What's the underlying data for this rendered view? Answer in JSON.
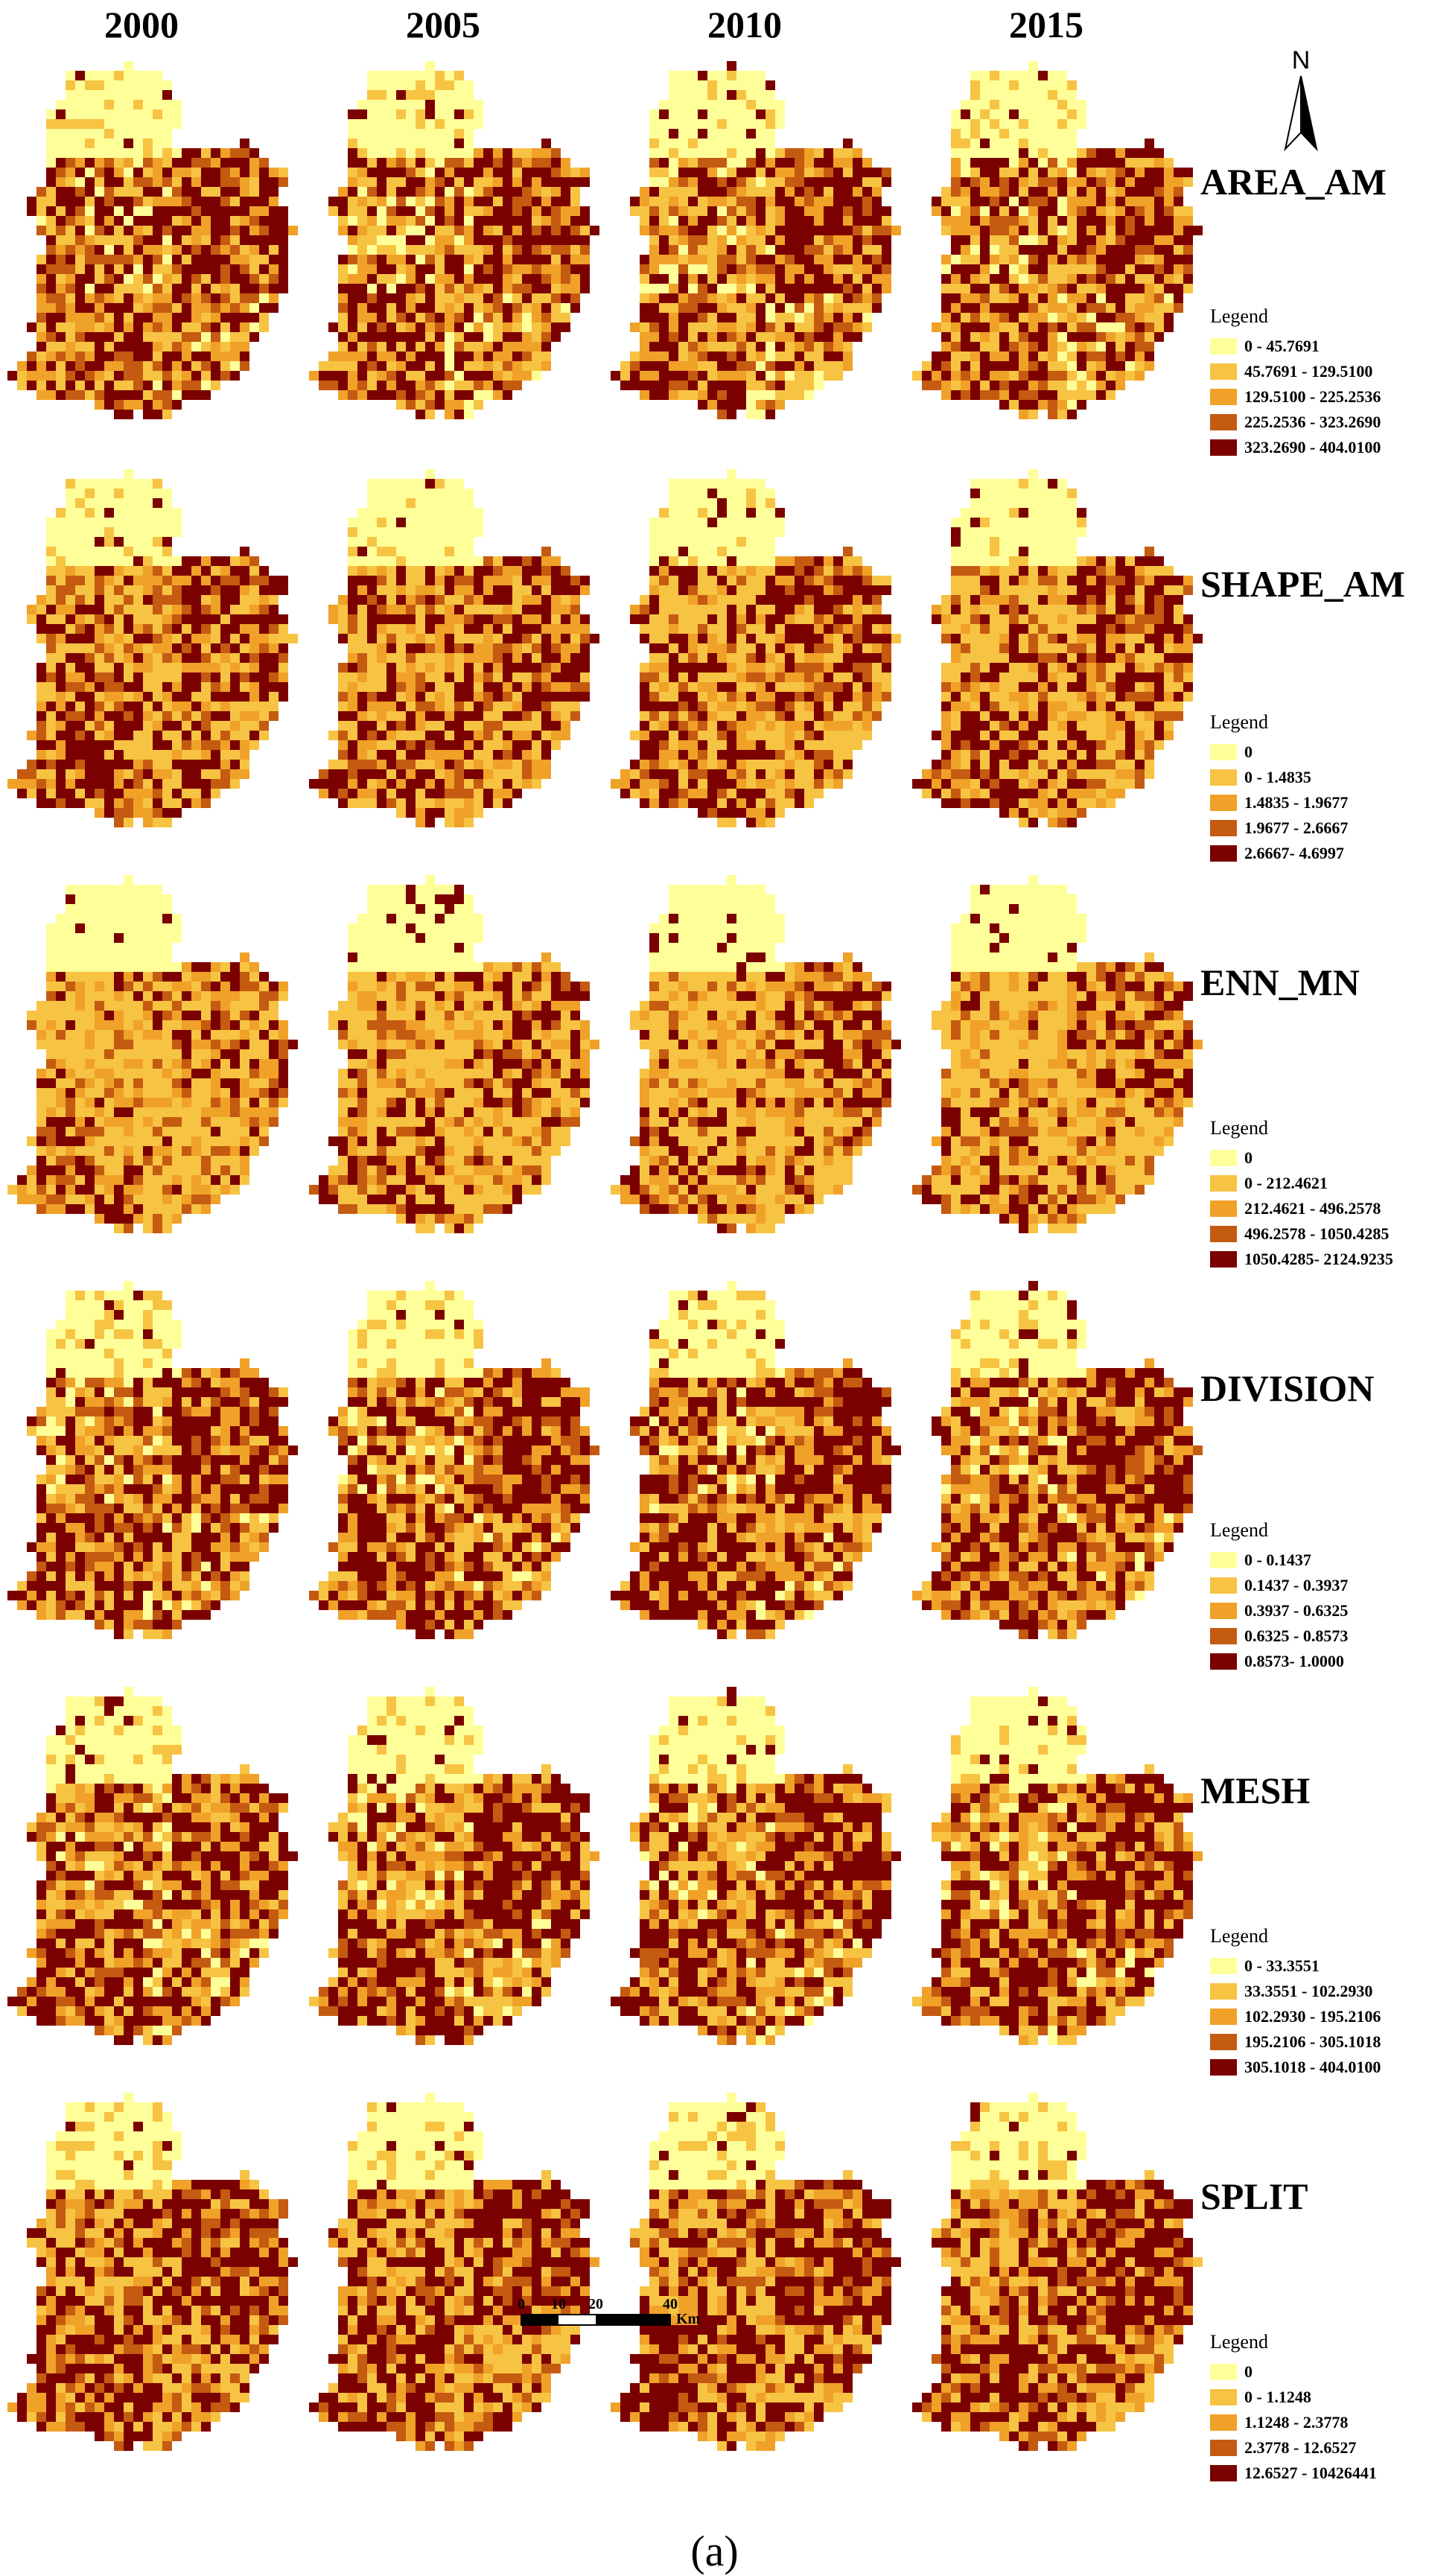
{
  "years": [
    "2000",
    "2005",
    "2010",
    "2015"
  ],
  "colors": {
    "c0": "#ffff99",
    "c1": "#f7c342",
    "c2": "#f0a128",
    "c3": "#c55a11",
    "c4": "#7b0000"
  },
  "north": {
    "label": "N",
    "icon": "north-arrow-icon"
  },
  "rows": [
    {
      "metric": "AREA_AM",
      "legend_title": "Legend",
      "legend": [
        {
          "label": "0 - 45.7691",
          "color": "#ffff99"
        },
        {
          "label": "45.7691 - 129.5100",
          "color": "#f7c342"
        },
        {
          "label": "129.5100 - 225.2536",
          "color": "#f0a128"
        },
        {
          "label": "225.2536 - 323.2690",
          "color": "#c55a11"
        },
        {
          "label": "323.2690 - 404.0100",
          "color": "#7b0000"
        }
      ]
    },
    {
      "metric": "SHAPE_AM",
      "legend_title": "Legend",
      "legend": [
        {
          "label": "0",
          "color": "#ffff99"
        },
        {
          "label": "0 - 1.4835",
          "color": "#f7c342"
        },
        {
          "label": "1.4835 - 1.9677",
          "color": "#f0a128"
        },
        {
          "label": "1.9677 - 2.6667",
          "color": "#c55a11"
        },
        {
          "label": "2.6667- 4.6997",
          "color": "#7b0000"
        }
      ]
    },
    {
      "metric": "ENN_MN",
      "legend_title": "Legend",
      "legend": [
        {
          "label": "0",
          "color": "#ffff99"
        },
        {
          "label": "0 - 212.4621",
          "color": "#f7c342"
        },
        {
          "label": "212.4621 - 496.2578",
          "color": "#f0a128"
        },
        {
          "label": "496.2578 - 1050.4285",
          "color": "#c55a11"
        },
        {
          "label": "1050.4285- 2124.9235",
          "color": "#7b0000"
        }
      ]
    },
    {
      "metric": "DIVISION",
      "legend_title": "Legend",
      "legend": [
        {
          "label": "0 - 0.1437",
          "color": "#ffff99"
        },
        {
          "label": "0.1437 - 0.3937",
          "color": "#f7c342"
        },
        {
          "label": "0.3937 - 0.6325",
          "color": "#f0a128"
        },
        {
          "label": "0.6325 - 0.8573",
          "color": "#c55a11"
        },
        {
          "label": "0.8573- 1.0000",
          "color": "#7b0000"
        }
      ]
    },
    {
      "metric": "MESH",
      "legend_title": "Legend",
      "legend": [
        {
          "label": "0 - 33.3551",
          "color": "#ffff99"
        },
        {
          "label": "33.3551 - 102.2930",
          "color": "#f7c342"
        },
        {
          "label": "102.2930 - 195.2106",
          "color": "#f0a128"
        },
        {
          "label": "195.2106 - 305.1018",
          "color": "#c55a11"
        },
        {
          "label": "305.1018 - 404.0100",
          "color": "#7b0000"
        }
      ]
    },
    {
      "metric": "SPLIT",
      "legend_title": "Legend",
      "legend": [
        {
          "label": "0",
          "color": "#ffff99"
        },
        {
          "label": "0 - 1.1248",
          "color": "#f7c342"
        },
        {
          "label": "1.1248 - 2.3778",
          "color": "#f0a128"
        },
        {
          "label": "2.3778 - 12.6527",
          "color": "#c55a11"
        },
        {
          "label": "12.6527 - 10426441",
          "color": "#7b0000"
        }
      ]
    }
  ],
  "scale_bar": {
    "ticks": [
      "0",
      "10",
      "20",
      "40"
    ],
    "unit": "Km"
  },
  "caption": "(a)"
}
